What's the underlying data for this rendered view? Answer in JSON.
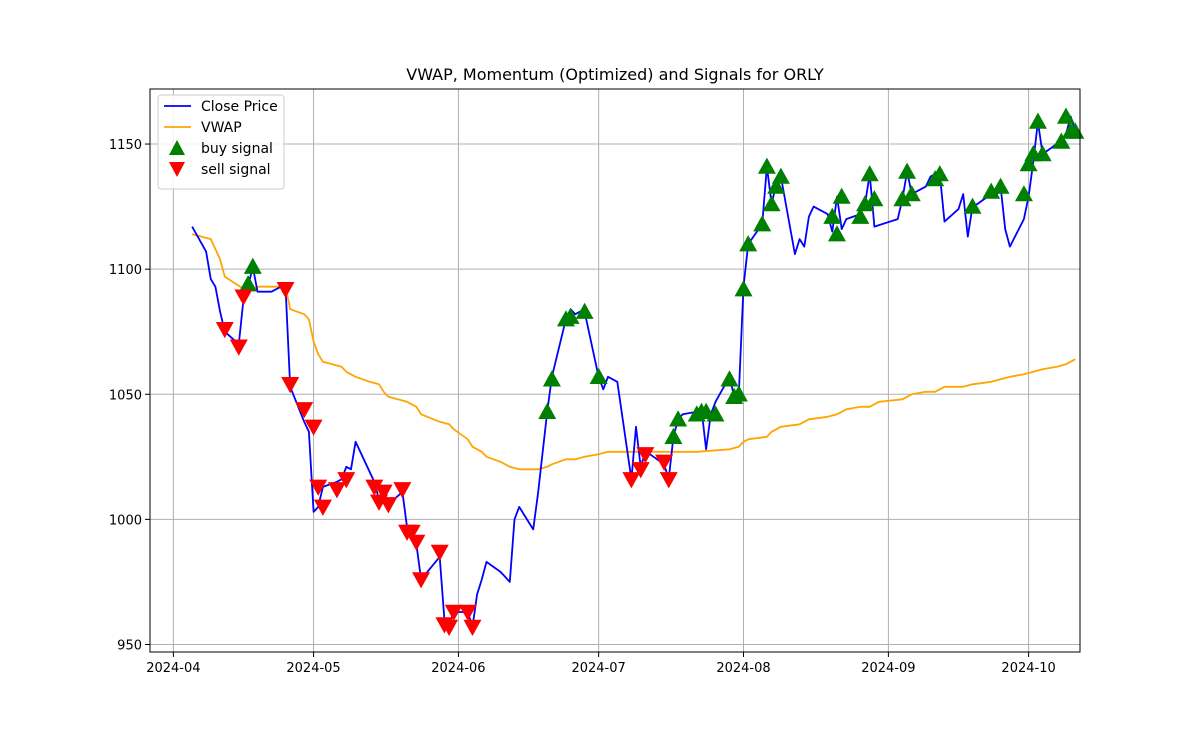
{
  "chart_data": {
    "type": "line",
    "title": "VWAP, Momentum (Optimized) and Signals for ORLY",
    "xlabel": "",
    "ylabel": "",
    "xlim": [
      "2024-03-27",
      "2024-10-12"
    ],
    "ylim": [
      947,
      1172
    ],
    "x_ticks": [
      "2024-04",
      "2024-05",
      "2024-06",
      "2024-07",
      "2024-08",
      "2024-09",
      "2024-10"
    ],
    "y_ticks": [
      950,
      1000,
      1050,
      1100,
      1150
    ],
    "grid": true,
    "legend_position": "upper-left",
    "legend": [
      {
        "label": "Close Price",
        "kind": "line",
        "color": "#0000ff"
      },
      {
        "label": "VWAP",
        "kind": "line",
        "color": "#ffa500"
      },
      {
        "label": "buy signal",
        "kind": "marker-up",
        "color": "#008000"
      },
      {
        "label": "sell signal",
        "kind": "marker-down",
        "color": "#ff0000"
      }
    ],
    "series": [
      {
        "name": "Close Price",
        "color": "#0000ff",
        "points": [
          [
            "2024-04-05",
            1117
          ],
          [
            "2024-04-08",
            1107
          ],
          [
            "2024-04-09",
            1096
          ],
          [
            "2024-04-10",
            1093
          ],
          [
            "2024-04-11",
            1083
          ],
          [
            "2024-04-12",
            1075
          ],
          [
            "2024-04-15",
            1070
          ],
          [
            "2024-04-16",
            1088
          ],
          [
            "2024-04-17",
            1093
          ],
          [
            "2024-04-18",
            1101
          ],
          [
            "2024-04-19",
            1091
          ],
          [
            "2024-04-22",
            1091
          ],
          [
            "2024-04-23",
            1092
          ],
          [
            "2024-04-24",
            1093
          ],
          [
            "2024-04-25",
            1093
          ],
          [
            "2024-04-26",
            1053
          ],
          [
            "2024-04-29",
            1039
          ],
          [
            "2024-04-30",
            1035
          ],
          [
            "2024-05-01",
            1003
          ],
          [
            "2024-05-02",
            1005
          ],
          [
            "2024-05-03",
            1013
          ],
          [
            "2024-05-06",
            1015
          ],
          [
            "2024-05-07",
            1016
          ],
          [
            "2024-05-08",
            1021
          ],
          [
            "2024-05-09",
            1020
          ],
          [
            "2024-05-10",
            1031
          ],
          [
            "2024-05-13",
            1019
          ],
          [
            "2024-05-14",
            1015
          ],
          [
            "2024-05-15",
            1008
          ],
          [
            "2024-05-16",
            1011
          ],
          [
            "2024-05-17",
            1006
          ],
          [
            "2024-05-20",
            1011
          ],
          [
            "2024-05-21",
            997
          ],
          [
            "2024-05-22",
            995
          ],
          [
            "2024-05-23",
            990
          ],
          [
            "2024-05-24",
            976
          ],
          [
            "2024-05-28",
            985
          ],
          [
            "2024-05-29",
            960
          ],
          [
            "2024-05-30",
            958
          ],
          [
            "2024-05-31",
            963
          ],
          [
            "2024-06-03",
            963
          ],
          [
            "2024-06-04",
            957
          ],
          [
            "2024-06-05",
            970
          ],
          [
            "2024-06-06",
            976
          ],
          [
            "2024-06-07",
            983
          ],
          [
            "2024-06-10",
            979
          ],
          [
            "2024-06-11",
            977
          ],
          [
            "2024-06-12",
            975
          ],
          [
            "2024-06-13",
            1000
          ],
          [
            "2024-06-14",
            1005
          ],
          [
            "2024-06-17",
            996
          ],
          [
            "2024-06-18",
            1010
          ],
          [
            "2024-06-20",
            1043
          ],
          [
            "2024-06-21",
            1057
          ],
          [
            "2024-06-24",
            1080
          ],
          [
            "2024-06-25",
            1084
          ],
          [
            "2024-06-26",
            1082
          ],
          [
            "2024-06-27",
            1083
          ],
          [
            "2024-06-28",
            1083
          ],
          [
            "2024-07-01",
            1057
          ],
          [
            "2024-07-02",
            1052
          ],
          [
            "2024-07-03",
            1057
          ],
          [
            "2024-07-05",
            1055
          ],
          [
            "2024-07-08",
            1016
          ],
          [
            "2024-07-09",
            1037
          ],
          [
            "2024-07-10",
            1021
          ],
          [
            "2024-07-11",
            1027
          ],
          [
            "2024-07-12",
            1026
          ],
          [
            "2024-07-15",
            1022
          ],
          [
            "2024-07-16",
            1016
          ],
          [
            "2024-07-17",
            1033
          ],
          [
            "2024-07-18",
            1040
          ],
          [
            "2024-07-19",
            1042
          ],
          [
            "2024-07-22",
            1043
          ],
          [
            "2024-07-23",
            1044
          ],
          [
            "2024-07-24",
            1028
          ],
          [
            "2024-07-25",
            1042
          ],
          [
            "2024-07-26",
            1047
          ],
          [
            "2024-07-29",
            1057
          ],
          [
            "2024-07-30",
            1049
          ],
          [
            "2024-07-31",
            1050
          ],
          [
            "2024-08-01",
            1093
          ],
          [
            "2024-08-02",
            1110
          ],
          [
            "2024-08-05",
            1118
          ],
          [
            "2024-08-06",
            1141
          ],
          [
            "2024-08-07",
            1126
          ],
          [
            "2024-08-08",
            1134
          ],
          [
            "2024-08-09",
            1137
          ],
          [
            "2024-08-12",
            1106
          ],
          [
            "2024-08-13",
            1112
          ],
          [
            "2024-08-14",
            1109
          ],
          [
            "2024-08-15",
            1121
          ],
          [
            "2024-08-16",
            1125
          ],
          [
            "2024-08-19",
            1122
          ],
          [
            "2024-08-20",
            1115
          ],
          [
            "2024-08-21",
            1129
          ],
          [
            "2024-08-22",
            1116
          ],
          [
            "2024-08-23",
            1120
          ],
          [
            "2024-08-26",
            1122
          ],
          [
            "2024-08-27",
            1126
          ],
          [
            "2024-08-28",
            1138
          ],
          [
            "2024-08-29",
            1117
          ],
          [
            "2024-09-03",
            1120
          ],
          [
            "2024-09-04",
            1128
          ],
          [
            "2024-09-05",
            1139
          ],
          [
            "2024-09-06",
            1130
          ],
          [
            "2024-09-09",
            1133
          ],
          [
            "2024-09-10",
            1137
          ],
          [
            "2024-09-11",
            1138
          ],
          [
            "2024-09-12",
            1138
          ],
          [
            "2024-09-13",
            1119
          ],
          [
            "2024-09-16",
            1124
          ],
          [
            "2024-09-17",
            1130
          ],
          [
            "2024-09-18",
            1113
          ],
          [
            "2024-09-19",
            1125
          ],
          [
            "2024-09-20",
            1126
          ],
          [
            "2024-09-23",
            1130
          ],
          [
            "2024-09-24",
            1129
          ],
          [
            "2024-09-25",
            1133
          ],
          [
            "2024-09-26",
            1116
          ],
          [
            "2024-09-27",
            1109
          ],
          [
            "2024-09-30",
            1120
          ],
          [
            "2024-10-01",
            1129
          ],
          [
            "2024-10-02",
            1143
          ],
          [
            "2024-10-03",
            1159
          ],
          [
            "2024-10-04",
            1146
          ],
          [
            "2024-10-07",
            1150
          ],
          [
            "2024-10-08",
            1151
          ],
          [
            "2024-10-09",
            1154
          ],
          [
            "2024-10-10",
            1161
          ],
          [
            "2024-10-11",
            1155
          ]
        ]
      },
      {
        "name": "VWAP",
        "color": "#ffa500",
        "points": [
          [
            "2024-04-05",
            1114
          ],
          [
            "2024-04-09",
            1112
          ],
          [
            "2024-04-11",
            1104
          ],
          [
            "2024-04-12",
            1097
          ],
          [
            "2024-04-17",
            1091
          ],
          [
            "2024-04-19",
            1093
          ],
          [
            "2024-04-25",
            1093
          ],
          [
            "2024-04-26",
            1084
          ],
          [
            "2024-04-29",
            1082
          ],
          [
            "2024-04-30",
            1080
          ],
          [
            "2024-05-01",
            1071
          ],
          [
            "2024-05-02",
            1066
          ],
          [
            "2024-05-03",
            1063
          ],
          [
            "2024-05-07",
            1061
          ],
          [
            "2024-05-08",
            1059
          ],
          [
            "2024-05-10",
            1057
          ],
          [
            "2024-05-13",
            1055
          ],
          [
            "2024-05-15",
            1054
          ],
          [
            "2024-05-16",
            1051
          ],
          [
            "2024-05-17",
            1049
          ],
          [
            "2024-05-21",
            1047
          ],
          [
            "2024-05-23",
            1045
          ],
          [
            "2024-05-24",
            1042
          ],
          [
            "2024-05-28",
            1039
          ],
          [
            "2024-05-30",
            1038
          ],
          [
            "2024-05-31",
            1036
          ],
          [
            "2024-06-03",
            1032
          ],
          [
            "2024-06-04",
            1029
          ],
          [
            "2024-06-06",
            1027
          ],
          [
            "2024-06-07",
            1025
          ],
          [
            "2024-06-10",
            1023
          ],
          [
            "2024-06-12",
            1021
          ],
          [
            "2024-06-14",
            1020
          ],
          [
            "2024-06-18",
            1020
          ],
          [
            "2024-06-20",
            1021
          ],
          [
            "2024-06-21",
            1022
          ],
          [
            "2024-06-24",
            1024
          ],
          [
            "2024-06-26",
            1024
          ],
          [
            "2024-06-28",
            1025
          ],
          [
            "2024-07-01",
            1026
          ],
          [
            "2024-07-03",
            1027
          ],
          [
            "2024-07-10",
            1027
          ],
          [
            "2024-07-16",
            1027
          ],
          [
            "2024-07-22",
            1027
          ],
          [
            "2024-07-29",
            1028
          ],
          [
            "2024-07-31",
            1029
          ],
          [
            "2024-08-01",
            1031
          ],
          [
            "2024-08-02",
            1032
          ],
          [
            "2024-08-06",
            1033
          ],
          [
            "2024-08-07",
            1035
          ],
          [
            "2024-08-09",
            1037
          ],
          [
            "2024-08-13",
            1038
          ],
          [
            "2024-08-15",
            1040
          ],
          [
            "2024-08-19",
            1041
          ],
          [
            "2024-08-21",
            1042
          ],
          [
            "2024-08-23",
            1044
          ],
          [
            "2024-08-26",
            1045
          ],
          [
            "2024-08-28",
            1045
          ],
          [
            "2024-08-30",
            1047
          ],
          [
            "2024-09-04",
            1048
          ],
          [
            "2024-09-05",
            1049
          ],
          [
            "2024-09-06",
            1050
          ],
          [
            "2024-09-09",
            1051
          ],
          [
            "2024-09-11",
            1051
          ],
          [
            "2024-09-13",
            1053
          ],
          [
            "2024-09-17",
            1053
          ],
          [
            "2024-09-19",
            1054
          ],
          [
            "2024-09-23",
            1055
          ],
          [
            "2024-09-25",
            1056
          ],
          [
            "2024-09-27",
            1057
          ],
          [
            "2024-09-30",
            1058
          ],
          [
            "2024-10-02",
            1059
          ],
          [
            "2024-10-04",
            1060
          ],
          [
            "2024-10-07",
            1061
          ],
          [
            "2024-10-09",
            1062
          ],
          [
            "2024-10-11",
            1064
          ]
        ]
      }
    ],
    "buy_signals": [
      [
        "2024-04-17",
        1094
      ],
      [
        "2024-04-18",
        1101
      ],
      [
        "2024-06-20",
        1043
      ],
      [
        "2024-06-21",
        1056
      ],
      [
        "2024-06-24",
        1080
      ],
      [
        "2024-06-25",
        1081
      ],
      [
        "2024-06-28",
        1083
      ],
      [
        "2024-07-01",
        1057
      ],
      [
        "2024-07-17",
        1033
      ],
      [
        "2024-07-18",
        1040
      ],
      [
        "2024-07-22",
        1042
      ],
      [
        "2024-07-23",
        1043
      ],
      [
        "2024-07-24",
        1043
      ],
      [
        "2024-07-26",
        1042
      ],
      [
        "2024-07-29",
        1056
      ],
      [
        "2024-07-30",
        1049
      ],
      [
        "2024-07-31",
        1050
      ],
      [
        "2024-08-01",
        1092
      ],
      [
        "2024-08-02",
        1110
      ],
      [
        "2024-08-05",
        1118
      ],
      [
        "2024-08-06",
        1141
      ],
      [
        "2024-08-07",
        1126
      ],
      [
        "2024-08-08",
        1133
      ],
      [
        "2024-08-09",
        1137
      ],
      [
        "2024-08-20",
        1121
      ],
      [
        "2024-08-21",
        1114
      ],
      [
        "2024-08-22",
        1129
      ],
      [
        "2024-08-26",
        1121
      ],
      [
        "2024-08-27",
        1126
      ],
      [
        "2024-08-28",
        1138
      ],
      [
        "2024-08-29",
        1128
      ],
      [
        "2024-09-04",
        1128
      ],
      [
        "2024-09-05",
        1139
      ],
      [
        "2024-09-06",
        1130
      ],
      [
        "2024-09-11",
        1136
      ],
      [
        "2024-09-12",
        1138
      ],
      [
        "2024-09-19",
        1125
      ],
      [
        "2024-09-23",
        1131
      ],
      [
        "2024-09-25",
        1133
      ],
      [
        "2024-09-30",
        1130
      ],
      [
        "2024-10-01",
        1142
      ],
      [
        "2024-10-02",
        1146
      ],
      [
        "2024-10-03",
        1159
      ],
      [
        "2024-10-04",
        1146
      ],
      [
        "2024-10-08",
        1151
      ],
      [
        "2024-10-09",
        1161
      ],
      [
        "2024-10-10",
        1155
      ],
      [
        "2024-10-11",
        1155
      ]
    ],
    "sell_signals": [
      [
        "2024-04-12",
        1076
      ],
      [
        "2024-04-15",
        1069
      ],
      [
        "2024-04-16",
        1089
      ],
      [
        "2024-04-25",
        1092
      ],
      [
        "2024-04-26",
        1054
      ],
      [
        "2024-04-29",
        1044
      ],
      [
        "2024-05-01",
        1037
      ],
      [
        "2024-05-02",
        1013
      ],
      [
        "2024-05-03",
        1005
      ],
      [
        "2024-05-06",
        1012
      ],
      [
        "2024-05-08",
        1016
      ],
      [
        "2024-05-14",
        1013
      ],
      [
        "2024-05-15",
        1007
      ],
      [
        "2024-05-16",
        1011
      ],
      [
        "2024-05-17",
        1006
      ],
      [
        "2024-05-20",
        1012
      ],
      [
        "2024-05-21",
        995
      ],
      [
        "2024-05-22",
        995
      ],
      [
        "2024-05-23",
        991
      ],
      [
        "2024-05-24",
        976
      ],
      [
        "2024-05-28",
        987
      ],
      [
        "2024-05-29",
        958
      ],
      [
        "2024-05-30",
        957
      ],
      [
        "2024-05-31",
        963
      ],
      [
        "2024-06-03",
        963
      ],
      [
        "2024-06-04",
        957
      ],
      [
        "2024-07-08",
        1016
      ],
      [
        "2024-07-10",
        1020
      ],
      [
        "2024-07-11",
        1026
      ],
      [
        "2024-07-15",
        1023
      ],
      [
        "2024-07-16",
        1016
      ]
    ]
  }
}
